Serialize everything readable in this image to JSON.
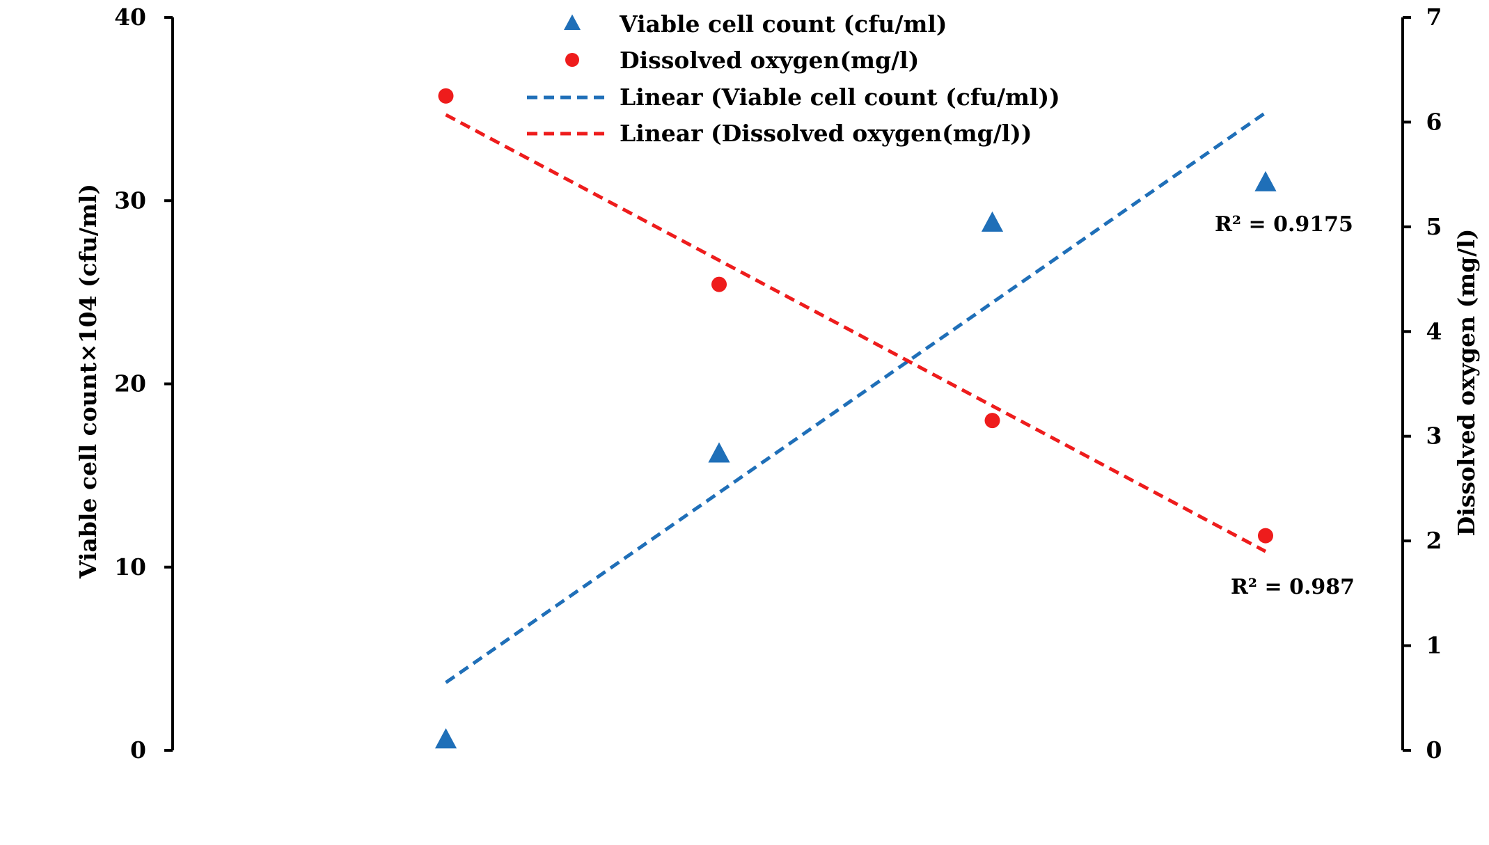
{
  "chart_data": {
    "type": "scatter",
    "x": [
      1,
      2,
      3,
      4
    ],
    "xlim": [
      0,
      5
    ],
    "y_left": {
      "label": "Viable cell count×104 (cfu/ml)",
      "ylim": [
        0,
        40
      ],
      "ticks": [
        "0",
        "10",
        "20",
        "30",
        "40"
      ]
    },
    "y_right": {
      "label": "Dissolved oxygen  (mg/l)",
      "ylim": [
        0,
        7
      ],
      "ticks": [
        "0",
        "1",
        "2",
        "3",
        "4",
        "5",
        "6",
        "7"
      ]
    },
    "series": [
      {
        "name": "Viable cell count (cfu/ml)",
        "axis": "left",
        "marker": "triangle",
        "color": "#1f6fb8",
        "values": [
          0.6,
          16.2,
          28.8,
          31.0
        ]
      },
      {
        "name": "Dissolved oxygen(mg/l)",
        "axis": "right",
        "marker": "circle",
        "color": "#ee1c1c",
        "values": [
          6.25,
          4.45,
          3.15,
          2.05
        ]
      }
    ],
    "trendlines": [
      {
        "name": "Linear (Viable cell count (cfu/ml))",
        "axis": "left",
        "color": "#1f6fb8",
        "style": "dashed",
        "x": [
          1,
          4
        ],
        "y": [
          3.7,
          34.8
        ],
        "r2_label": "R² = 0.9175"
      },
      {
        "name": "Linear (Dissolved oxygen(mg/l))",
        "axis": "right",
        "color": "#ee1c1c",
        "style": "dashed",
        "x": [
          1,
          4
        ],
        "y": [
          6.07,
          1.9
        ],
        "r2_label": "R² = 0.987"
      }
    ],
    "legend": {
      "placement": "top-center",
      "entries": [
        "Viable cell count (cfu/ml)",
        "Dissolved oxygen(mg/l)",
        "Linear (Viable cell count (cfu/ml))",
        "Linear (Dissolved oxygen(mg/l))"
      ]
    },
    "grid": false
  }
}
